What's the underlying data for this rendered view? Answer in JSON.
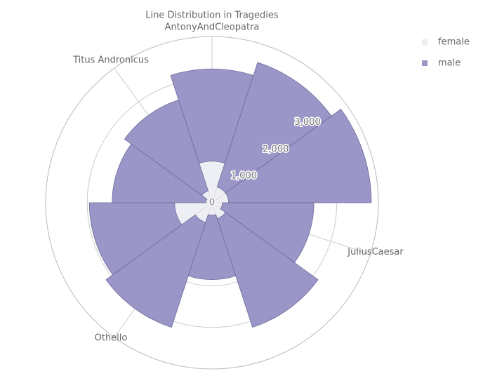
{
  "chart_data": {
    "type": "polar_stacked_bar",
    "title": "Line Distribution in Tragedies",
    "categories": [
      "AntonyAndCleopatra",
      null,
      null,
      "JuliusCaesar",
      null,
      null,
      "Othello",
      null,
      null,
      "Titus Andronicus"
    ],
    "series": [
      {
        "name": "female",
        "color": "#eeeef5",
        "values": [
          1000,
          400,
          400,
          250,
          400,
          300,
          500,
          900,
          150,
          300
        ]
      },
      {
        "name": "male",
        "color": "#9b96c8",
        "values": [
          2220,
          3150,
          3430,
          2200,
          2750,
          1550,
          2650,
          2050,
          2250,
          2300
        ]
      }
    ],
    "ylim": [
      0,
      4000
    ],
    "yticks": [
      0,
      {
        "value": 1000,
        "label": "1,000"
      },
      {
        "value": 2000,
        "label": "2,000"
      },
      {
        "value": 3000,
        "label": "3,000"
      }
    ],
    "grid": true,
    "legend": "top-right"
  }
}
